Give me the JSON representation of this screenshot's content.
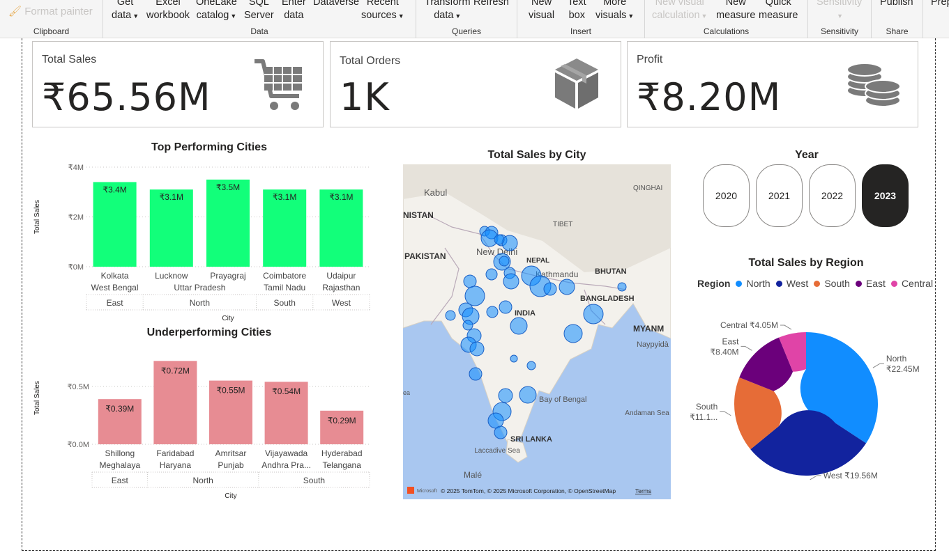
{
  "ribbon": {
    "format_painter": "Format painter",
    "groups": {
      "clipboard": "Clipboard",
      "data": "Data",
      "queries": "Queries",
      "insert": "Insert",
      "calculations": "Calculations",
      "sensitivity": "Sensitivity",
      "share": "Share"
    },
    "buttons": {
      "get_data": [
        "Get",
        "data"
      ],
      "excel": [
        "Excel",
        "workbook"
      ],
      "onelake": [
        "OneLake",
        "catalog"
      ],
      "sql": [
        "SQL",
        "Server"
      ],
      "enter": [
        "Enter",
        "data"
      ],
      "dataverse": [
        "Dataverse",
        ""
      ],
      "recent": [
        "Recent",
        "sources"
      ],
      "transform": [
        "Transform",
        "data"
      ],
      "refresh": [
        "Refresh",
        ""
      ],
      "new_visual": [
        "New",
        "visual"
      ],
      "text_box": [
        "Text",
        "box"
      ],
      "more_visuals": [
        "More",
        "visuals"
      ],
      "new_visual_calc": [
        "New visual",
        "calculation"
      ],
      "new_measure": [
        "New",
        "measure"
      ],
      "quick_measure": [
        "Quick",
        "measure"
      ],
      "sensitivity": [
        "Sensitivity",
        ""
      ],
      "publish": [
        "Publish",
        ""
      ],
      "prep": [
        "Prep",
        ""
      ]
    }
  },
  "cards": [
    {
      "title": "Total Sales",
      "value": "₹65.56M",
      "icon": "shopping-cart-icon"
    },
    {
      "title": "Total Orders",
      "value": "1K",
      "icon": "package-box-icon"
    },
    {
      "title": "Profit",
      "value": "₹8.20M",
      "icon": "coin-stack-icon"
    }
  ],
  "top_chart": {
    "chart_data": {
      "type": "bar",
      "title": "Top Performing Cities",
      "xlabel": "City",
      "ylabel": "Total Sales",
      "ylim": [
        0,
        4000000
      ],
      "yticks": [
        "₹0M",
        "₹2M",
        "₹4M"
      ],
      "categories": [
        {
          "city": "Kolkata",
          "state": "West Bengal",
          "region": "East"
        },
        {
          "city": "Lucknow",
          "state": "Uttar Pradesh",
          "region": "North"
        },
        {
          "city": "Prayagraj",
          "state": "Uttar Pradesh",
          "region": "North"
        },
        {
          "city": "Coimbatore",
          "state": "Tamil Nadu",
          "region": "South"
        },
        {
          "city": "Udaipur",
          "state": "Rajasthan",
          "region": "West"
        }
      ],
      "values": [
        3400000,
        3100000,
        3500000,
        3100000,
        3100000
      ],
      "labels": [
        "₹3.4M",
        "₹3.1M",
        "₹3.5M",
        "₹3.1M",
        "₹3.1M"
      ],
      "color": "#12ff7a"
    }
  },
  "under_chart": {
    "chart_data": {
      "type": "bar",
      "title": "Underperforming Cities",
      "xlabel": "City",
      "ylabel": "Total Sales",
      "ylim": [
        0,
        800000
      ],
      "yticks": [
        "₹0.0M",
        "₹0.5M"
      ],
      "categories": [
        {
          "city": "Shillong",
          "state": "Meghalaya",
          "region": "East"
        },
        {
          "city": "Faridabad",
          "state": "Haryana",
          "region": "North"
        },
        {
          "city": "Amritsar",
          "state": "Punjab",
          "region": "North"
        },
        {
          "city": "Vijayawada",
          "state": "Andhra Pra...",
          "region": "South"
        },
        {
          "city": "Hyderabad",
          "state": "Telangana",
          "region": "South"
        }
      ],
      "values": [
        390000,
        720000,
        550000,
        540000,
        290000
      ],
      "labels": [
        "₹0.39M",
        "₹0.72M",
        "₹0.55M",
        "₹0.54M",
        "₹0.29M"
      ],
      "color": "#e78c93"
    }
  },
  "map": {
    "title": "Total Sales by City",
    "places": [
      "Kabul",
      "NISTAN",
      "PAKISTAN",
      "New Delhi",
      "TIBET",
      "QINGHAI",
      "NEPAL",
      "Kathmandu",
      "BHUTAN",
      "BANGLADESH",
      "INDIA",
      "MYANM",
      "Naypyidà",
      "Bay of Bengal",
      "Andaman Sea",
      "SRI LANKA",
      "Laccadive Sea",
      "Malé",
      "ea"
    ],
    "attribution": "© 2025 TomTom, © 2025 Microsoft Corporation, © OpenStreetMap",
    "terms": "Terms",
    "brand": "Microsoft"
  },
  "year_slicer": {
    "title": "Year",
    "years": [
      "2020",
      "2021",
      "2022",
      "2023"
    ],
    "selected": "2023"
  },
  "donut": {
    "chart_data": {
      "type": "pie",
      "title": "Total Sales by Region",
      "legend_title": "Region",
      "legend_position": "top",
      "slices": [
        {
          "name": "North",
          "value": 22450000,
          "label": "₹22.45M",
          "color": "#118dff"
        },
        {
          "name": "West",
          "value": 19560000,
          "label": "₹19.56M",
          "color": "#12239e"
        },
        {
          "name": "South",
          "value": 11100000,
          "label": "₹11.1...",
          "color": "#e66c37"
        },
        {
          "name": "East",
          "value": 8400000,
          "label": "₹8.40M",
          "color": "#6b007b"
        },
        {
          "name": "Central",
          "value": 4050000,
          "label": "₹4.05M",
          "color": "#e044a7"
        }
      ]
    }
  }
}
